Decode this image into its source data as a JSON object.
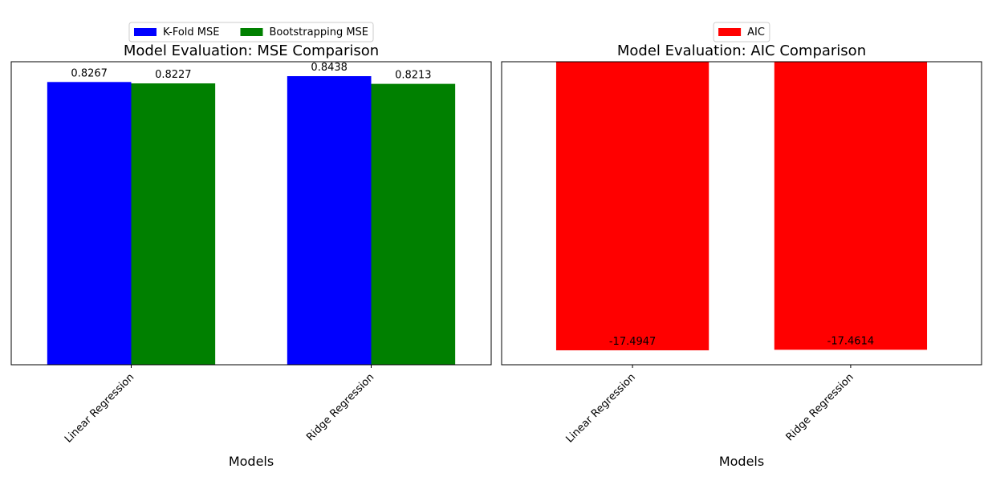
{
  "chart_data": [
    {
      "type": "bar",
      "title": "Model Evaluation: MSE Comparison",
      "xlabel": "Models",
      "ylabel": "",
      "categories": [
        "Linear Regression",
        "Ridge Regression"
      ],
      "series": [
        {
          "name": "K-Fold MSE",
          "values": [
            0.8267,
            0.8438
          ],
          "color": "#0000ff",
          "labels": [
            "0.8267",
            "0.8438"
          ]
        },
        {
          "name": "Bootstrapping MSE",
          "values": [
            0.8227,
            0.8213
          ],
          "color": "#008000",
          "labels": [
            "0.8227",
            "0.8213"
          ]
        }
      ],
      "ylim": [
        0,
        0.886
      ],
      "y_ticks_shown": false,
      "grid": false,
      "legend": {
        "placement": "top-center, above plot",
        "columns": 2
      }
    },
    {
      "type": "bar",
      "title": "Model Evaluation: AIC Comparison",
      "xlabel": "Models",
      "ylabel": "",
      "categories": [
        "Linear Regression",
        "Ridge Regression"
      ],
      "series": [
        {
          "name": "AIC",
          "values": [
            -17.4947,
            -17.4614
          ],
          "color": "#ff0000",
          "labels": [
            "-17.4947",
            "-17.4614"
          ]
        }
      ],
      "ylim": [
        -18.37,
        0
      ],
      "y_ticks_shown": false,
      "grid": false,
      "legend": {
        "placement": "top-center, above plot",
        "columns": 1
      }
    }
  ]
}
